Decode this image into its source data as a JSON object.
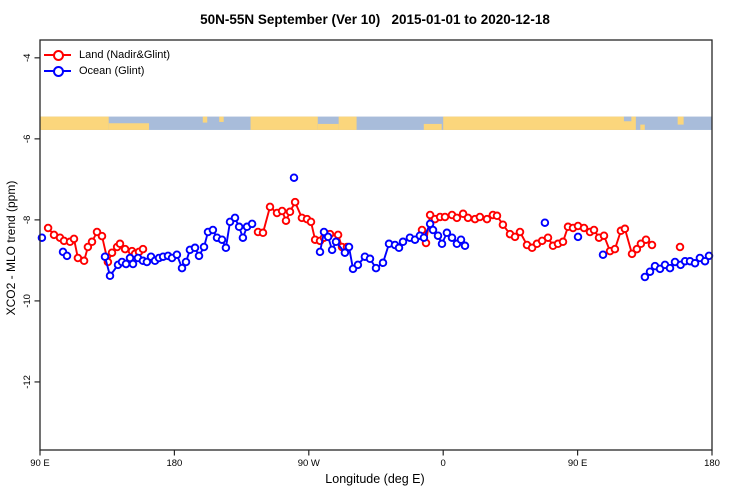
{
  "window": {
    "background": "#ffffff"
  },
  "chart_data": {
    "type": "scatter",
    "title": "50N-55N September (Ver 10)   2015-01-01 to 2020-12-18",
    "xlabel": "Longitude (deg E)",
    "ylabel": "XCO2 - MLO trend (ppm)",
    "xlim": [
      90,
      540
    ],
    "ylim": [
      -13.68,
      -3.56
    ],
    "x_ticks": [
      {
        "value": 90,
        "label": "90 E"
      },
      {
        "value": 180,
        "label": "180"
      },
      {
        "value": 270,
        "label": "90 W"
      },
      {
        "value": 360,
        "label": "0"
      },
      {
        "value": 450,
        "label": "90 E"
      },
      {
        "value": 540,
        "label": "180"
      }
    ],
    "y_ticks": [
      {
        "value": -4,
        "label": "-4"
      },
      {
        "value": -6,
        "label": "-6"
      },
      {
        "value": -8,
        "label": "-8"
      },
      {
        "value": -10,
        "label": "-10"
      },
      {
        "value": -12,
        "label": "-12"
      }
    ],
    "legend": [
      {
        "label": "Land (Nadir&Glint)",
        "color": "#ff0000"
      },
      {
        "label": "Ocean (Glint)",
        "color": "#0000ff"
      }
    ],
    "gap_break_deg": 8,
    "marker": {
      "radius": 3.3,
      "stroke_width": 1.9,
      "fill": "#ffffff"
    },
    "axis_color": "#262626",
    "map_strip": {
      "y_top_ppm": -5.45,
      "y_bottom_ppm": -5.78,
      "ocean_color": "#a8bcda",
      "land_color": "#fbd67c",
      "land_segments": [
        {
          "from": 90,
          "to": 136
        },
        {
          "from": 136,
          "to": 163,
          "part": "bottom",
          "frac": 0.5
        },
        {
          "from": 199,
          "to": 202,
          "part": "top",
          "frac": 0.45
        },
        {
          "from": 210,
          "to": 213,
          "part": "top",
          "frac": 0.4
        },
        {
          "from": 231,
          "to": 276
        },
        {
          "from": 276,
          "to": 290,
          "part": "bottom",
          "frac": 0.45
        },
        {
          "from": 290,
          "to": 302
        },
        {
          "from": 347,
          "to": 359,
          "part": "bottom",
          "frac": 0.45
        },
        {
          "from": 360,
          "to": 489
        },
        {
          "from": 492,
          "to": 495,
          "part": "bottom",
          "frac": 0.4
        },
        {
          "from": 517,
          "to": 521,
          "part": "top",
          "frac": 0.6
        }
      ],
      "ocean_patches": [
        {
          "from": 481,
          "to": 486,
          "part": "top",
          "frac": 0.35
        }
      ]
    },
    "series": [
      {
        "name": "Land (Nadir&Glint)",
        "color": "#ff0000",
        "points": [
          [
            95.4,
            -8.2
          ],
          [
            99.4,
            -8.37
          ],
          [
            103.4,
            -8.44
          ],
          [
            106.1,
            -8.52
          ],
          [
            110.1,
            -8.54
          ],
          [
            112.8,
            -8.47
          ],
          [
            115.4,
            -8.94
          ],
          [
            119.5,
            -9.01
          ],
          [
            122.1,
            -8.67
          ],
          [
            124.8,
            -8.54
          ],
          [
            128.2,
            -8.3
          ],
          [
            131.5,
            -8.4
          ],
          [
            135.5,
            -9.04
          ],
          [
            138.2,
            -8.81
          ],
          [
            141.6,
            -8.67
          ],
          [
            143.6,
            -8.59
          ],
          [
            147.0,
            -8.72
          ],
          [
            151.6,
            -8.77
          ],
          [
            153.6,
            -8.84
          ],
          [
            156.3,
            -8.79
          ],
          [
            159.0,
            -8.72
          ],
          [
            236.0,
            -8.3
          ],
          [
            239.3,
            -8.32
          ],
          [
            244.0,
            -7.68
          ],
          [
            248.7,
            -7.83
          ],
          [
            252.1,
            -7.78
          ],
          [
            254.7,
            -8.02
          ],
          [
            257.4,
            -7.8
          ],
          [
            260.8,
            -7.56
          ],
          [
            265.4,
            -7.95
          ],
          [
            268.8,
            -7.98
          ],
          [
            271.5,
            -8.05
          ],
          [
            274.2,
            -8.49
          ],
          [
            277.5,
            -8.52
          ],
          [
            280.2,
            -8.44
          ],
          [
            284.2,
            -8.35
          ],
          [
            289.6,
            -8.37
          ],
          [
            292.2,
            -8.67
          ],
          [
            295.6,
            -8.67
          ],
          [
            345.8,
            -8.25
          ],
          [
            348.5,
            -8.57
          ],
          [
            351.2,
            -7.88
          ],
          [
            354.5,
            -7.98
          ],
          [
            357.9,
            -7.93
          ],
          [
            361.2,
            -7.93
          ],
          [
            365.9,
            -7.88
          ],
          [
            369.2,
            -7.95
          ],
          [
            373.3,
            -7.85
          ],
          [
            376.6,
            -7.95
          ],
          [
            381.3,
            -7.98
          ],
          [
            384.6,
            -7.93
          ],
          [
            389.3,
            -7.98
          ],
          [
            393.3,
            -7.88
          ],
          [
            396.0,
            -7.9
          ],
          [
            400.0,
            -8.12
          ],
          [
            404.7,
            -8.35
          ],
          [
            408.1,
            -8.42
          ],
          [
            411.4,
            -8.3
          ],
          [
            416.1,
            -8.62
          ],
          [
            419.5,
            -8.69
          ],
          [
            422.8,
            -8.59
          ],
          [
            426.2,
            -8.52
          ],
          [
            430.2,
            -8.44
          ],
          [
            433.5,
            -8.64
          ],
          [
            436.9,
            -8.59
          ],
          [
            440.2,
            -8.54
          ],
          [
            443.6,
            -8.17
          ],
          [
            446.9,
            -8.2
          ],
          [
            450.3,
            -8.15
          ],
          [
            454.3,
            -8.2
          ],
          [
            458.3,
            -8.3
          ],
          [
            461.0,
            -8.25
          ],
          [
            464.3,
            -8.44
          ],
          [
            467.7,
            -8.39
          ],
          [
            471.7,
            -8.77
          ],
          [
            475.0,
            -8.72
          ],
          [
            479.0,
            -8.27
          ],
          [
            481.7,
            -8.22
          ],
          [
            486.4,
            -8.84
          ],
          [
            489.7,
            -8.72
          ],
          [
            492.4,
            -8.59
          ],
          [
            495.8,
            -8.49
          ],
          [
            499.8,
            -8.62
          ],
          [
            518.6,
            -8.67
          ]
        ]
      },
      {
        "name": "Ocean (Glint)",
        "color": "#0000ff",
        "points": [
          [
            91.3,
            -8.44
          ],
          [
            105.4,
            -8.79
          ],
          [
            108.1,
            -8.89
          ],
          [
            133.5,
            -8.91
          ],
          [
            136.9,
            -9.38
          ],
          [
            142.2,
            -9.11
          ],
          [
            144.9,
            -9.04
          ],
          [
            147.6,
            -9.09
          ],
          [
            150.3,
            -8.94
          ],
          [
            152.3,
            -9.09
          ],
          [
            155.6,
            -8.94
          ],
          [
            158.9,
            -9.01
          ],
          [
            161.6,
            -9.04
          ],
          [
            164.3,
            -8.91
          ],
          [
            167.0,
            -9.01
          ],
          [
            169.7,
            -8.94
          ],
          [
            172.4,
            -8.91
          ],
          [
            175.7,
            -8.89
          ],
          [
            178.4,
            -8.94
          ],
          [
            181.7,
            -8.86
          ],
          [
            185.1,
            -9.19
          ],
          [
            187.8,
            -9.04
          ],
          [
            190.4,
            -8.74
          ],
          [
            193.8,
            -8.69
          ],
          [
            196.5,
            -8.89
          ],
          [
            199.8,
            -8.67
          ],
          [
            202.5,
            -8.3
          ],
          [
            205.8,
            -8.25
          ],
          [
            208.5,
            -8.44
          ],
          [
            211.9,
            -8.49
          ],
          [
            214.5,
            -8.69
          ],
          [
            217.2,
            -8.05
          ],
          [
            220.6,
            -7.95
          ],
          [
            223.3,
            -8.17
          ],
          [
            225.9,
            -8.44
          ],
          [
            228.6,
            -8.17
          ],
          [
            232.0,
            -8.1
          ],
          [
            260.1,
            -6.96
          ],
          [
            277.5,
            -8.79
          ],
          [
            280.2,
            -8.3
          ],
          [
            282.9,
            -8.42
          ],
          [
            285.6,
            -8.74
          ],
          [
            288.2,
            -8.54
          ],
          [
            294.2,
            -8.81
          ],
          [
            296.9,
            -8.67
          ],
          [
            299.6,
            -9.21
          ],
          [
            302.9,
            -9.11
          ],
          [
            307.6,
            -8.91
          ],
          [
            311.0,
            -8.96
          ],
          [
            315.0,
            -9.19
          ],
          [
            319.7,
            -9.06
          ],
          [
            323.7,
            -8.59
          ],
          [
            327.7,
            -8.62
          ],
          [
            330.4,
            -8.69
          ],
          [
            333.1,
            -8.54
          ],
          [
            337.7,
            -8.44
          ],
          [
            341.1,
            -8.49
          ],
          [
            344.4,
            -8.39
          ],
          [
            347.1,
            -8.44
          ],
          [
            351.2,
            -8.1
          ],
          [
            353.2,
            -8.25
          ],
          [
            356.5,
            -8.39
          ],
          [
            359.2,
            -8.59
          ],
          [
            362.5,
            -8.32
          ],
          [
            365.9,
            -8.44
          ],
          [
            369.2,
            -8.59
          ],
          [
            371.9,
            -8.49
          ],
          [
            374.6,
            -8.64
          ],
          [
            428.1,
            -8.07
          ],
          [
            450.3,
            -8.42
          ],
          [
            467.0,
            -8.86
          ],
          [
            495.1,
            -9.41
          ],
          [
            498.5,
            -9.28
          ],
          [
            501.8,
            -9.14
          ],
          [
            505.2,
            -9.21
          ],
          [
            508.5,
            -9.11
          ],
          [
            511.9,
            -9.19
          ],
          [
            515.2,
            -9.04
          ],
          [
            519.0,
            -9.11
          ],
          [
            522.0,
            -9.02
          ],
          [
            525.3,
            -9.02
          ],
          [
            528.6,
            -9.07
          ],
          [
            531.9,
            -8.94
          ],
          [
            535.3,
            -9.02
          ],
          [
            538.0,
            -8.89
          ]
        ]
      }
    ]
  }
}
